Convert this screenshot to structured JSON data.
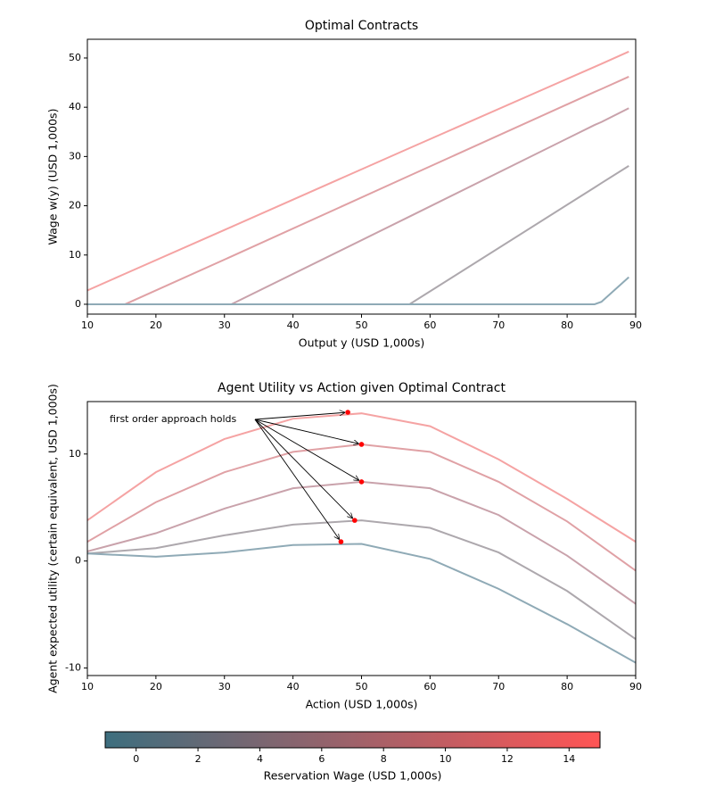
{
  "chart_data": [
    {
      "type": "line",
      "title": "Optimal Contracts",
      "xlabel": "Output y (USD 1,000s)",
      "ylabel": "Wage w(y) (USD 1,000s)",
      "x": [
        10,
        15.5,
        31,
        57,
        84,
        85,
        89
      ],
      "series": [
        {
          "color": "#f5a3a3",
          "values": [
            2.8,
            6.2,
            15.7,
            31.7,
            48.2,
            48.8,
            51.3
          ]
        },
        {
          "color": "#e0a1a5",
          "values": [
            0,
            0,
            9.7,
            26.1,
            43.1,
            43.7,
            46.2
          ]
        },
        {
          "color": "#c9a2ab",
          "values": [
            0,
            0,
            0,
            17.8,
            36.4,
            37.0,
            39.8
          ]
        },
        {
          "color": "#ada8ad",
          "values": [
            0,
            0,
            0,
            0,
            23.7,
            24.6,
            28.1
          ]
        },
        {
          "color": "#8faab6",
          "values": [
            0,
            0,
            0,
            0,
            0,
            0.5,
            5.5
          ]
        }
      ],
      "xlim": [
        10,
        90
      ],
      "xticks": [
        10,
        20,
        30,
        40,
        50,
        60,
        70,
        80,
        90
      ],
      "ylim": [
        -2,
        53.8
      ],
      "yticks": [
        0,
        10,
        20,
        30,
        40,
        50
      ]
    },
    {
      "type": "line",
      "title": "Agent Utility vs Action given Optimal Contract",
      "xlabel": "Action (USD 1,000s)",
      "ylabel": "Agent expected utility (certain equivalent, USD 1,000s)",
      "x": [
        10,
        20,
        30,
        40,
        50,
        60,
        70,
        80,
        90
      ],
      "series": [
        {
          "color": "#f5a3a3",
          "values": [
            3.8,
            8.3,
            11.4,
            13.3,
            13.8,
            12.6,
            9.5,
            5.8,
            1.8
          ]
        },
        {
          "color": "#e0a1a5",
          "values": [
            1.8,
            5.5,
            8.3,
            10.2,
            10.9,
            10.2,
            7.4,
            3.7,
            -0.9
          ]
        },
        {
          "color": "#c9a2ab",
          "values": [
            0.9,
            2.6,
            4.9,
            6.8,
            7.4,
            6.8,
            4.3,
            0.5,
            -4.0
          ]
        },
        {
          "color": "#ada8ad",
          "values": [
            0.7,
            1.2,
            2.4,
            3.4,
            3.8,
            3.1,
            0.8,
            -2.8,
            -7.3
          ]
        },
        {
          "color": "#8faab6",
          "values": [
            0.7,
            0.4,
            0.8,
            1.5,
            1.6,
            0.2,
            -2.6,
            -5.9,
            -9.5
          ]
        }
      ],
      "points": {
        "color": "#ff0000",
        "x": [
          48,
          50,
          50,
          49,
          47
        ],
        "y": [
          13.9,
          10.9,
          7.4,
          3.8,
          1.8
        ]
      },
      "annotation": "first order approach holds",
      "xlim": [
        10,
        90
      ],
      "xticks": [
        10,
        20,
        30,
        40,
        50,
        60,
        70,
        80,
        90
      ],
      "ylim": [
        -10.7,
        14.9
      ],
      "yticks": [
        -10,
        0,
        10
      ]
    },
    {
      "type": "colorbar",
      "label": "Reservation Wage (USD 1,000s)",
      "colors": [
        "#3d6e7e",
        "#ff5555"
      ],
      "xlim": [
        -1,
        15
      ],
      "xticks": [
        0,
        2,
        4,
        6,
        8,
        10,
        12,
        14
      ]
    }
  ]
}
